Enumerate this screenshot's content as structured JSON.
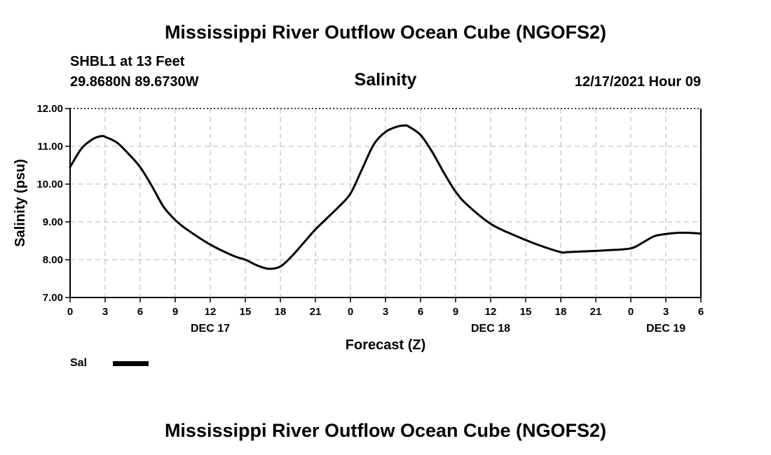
{
  "header": {
    "title": "Mississippi River Outflow Ocean Cube (NGOFS2)",
    "station": "SHBL1 at 13 Feet",
    "coords": "29.8680N  89.6730W",
    "variable": "Salinity",
    "datetime": "12/17/2021 Hour 09"
  },
  "footer": {
    "title": "Mississippi River Outflow Ocean Cube (NGOFS2)"
  },
  "legend": {
    "label": "Sal"
  },
  "chart_data": {
    "type": "line",
    "title": "Salinity",
    "xlabel": "Forecast (Z)",
    "ylabel": "Salinity (psu)",
    "ylim": [
      7.0,
      12.0
    ],
    "xlim": [
      0,
      54
    ],
    "x_unit": "hours since 12/17/2021 00Z",
    "grid": true,
    "yticks": [
      "7.00",
      "8.00",
      "9.00",
      "10.00",
      "11.00",
      "12.00"
    ],
    "ytick_values": [
      7,
      8,
      9,
      10,
      11,
      12
    ],
    "xtick_labels": [
      "0",
      "3",
      "6",
      "9",
      "12",
      "15",
      "18",
      "21",
      "0",
      "3",
      "6",
      "9",
      "12",
      "15",
      "18",
      "21",
      "0",
      "3",
      "6"
    ],
    "date_labels": [
      {
        "hour": 12,
        "label": "DEC 17"
      },
      {
        "hour": 36,
        "label": "DEC 18"
      },
      {
        "hour": 51,
        "label": "DEC 19"
      }
    ],
    "series": [
      {
        "name": "Sal",
        "x": [
          0,
          1,
          2,
          2.7,
          3,
          4,
          5,
          6,
          7,
          8,
          9,
          10,
          12,
          14,
          15,
          16,
          17,
          18,
          19,
          20,
          21,
          22,
          23,
          24,
          25,
          26,
          27,
          28,
          28.7,
          29,
          30,
          31,
          32,
          33,
          34,
          36,
          38,
          40,
          42,
          42.5,
          44,
          46,
          48,
          49,
          50,
          51,
          52,
          53,
          54
        ],
        "values": [
          10.45,
          10.95,
          11.2,
          11.27,
          11.25,
          11.1,
          10.8,
          10.45,
          9.95,
          9.4,
          9.05,
          8.8,
          8.4,
          8.1,
          8.0,
          7.85,
          7.76,
          7.82,
          8.1,
          8.45,
          8.8,
          9.1,
          9.4,
          9.75,
          10.4,
          11.05,
          11.38,
          11.52,
          11.55,
          11.52,
          11.3,
          10.85,
          10.3,
          9.8,
          9.45,
          8.95,
          8.65,
          8.4,
          8.2,
          8.2,
          8.22,
          8.25,
          8.3,
          8.45,
          8.62,
          8.68,
          8.71,
          8.71,
          8.69
        ]
      }
    ]
  }
}
